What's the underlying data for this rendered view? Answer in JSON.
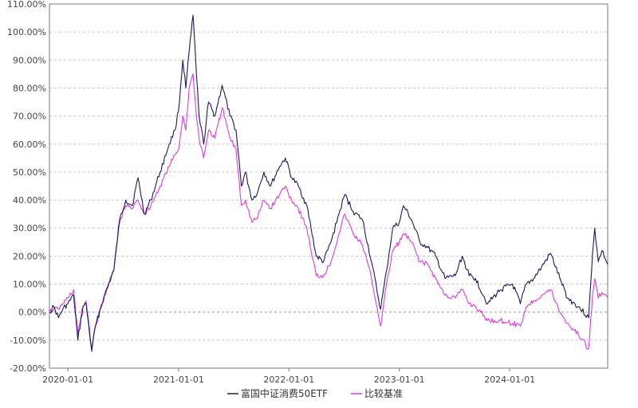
{
  "chart_data": {
    "type": "line",
    "title": "",
    "xlabel": "",
    "ylabel": "",
    "x_ticks": [
      "2020-01-01",
      "2021-01-01",
      "2022-01-01",
      "2023-01-01",
      "2024-01-01"
    ],
    "y_ticks": [
      "110.00%",
      "100.00%",
      "90.00%",
      "80.00%",
      "70.00%",
      "60.00%",
      "50.00%",
      "40.00%",
      "30.00%",
      "20.00%",
      "10.00%",
      "0.00%",
      "-10.00%",
      "-20.00%"
    ],
    "ylim": [
      -20,
      110
    ],
    "xlim": [
      "2019-11-01",
      "2024-11-20"
    ],
    "grid": true,
    "legend_position": "bottom",
    "series": [
      {
        "name": "富国中证消费50ETF",
        "color": "#1a1a5e",
        "points": [
          [
            "2019-11-01",
            0
          ],
          [
            "2019-11-15",
            2
          ],
          [
            "2019-12-01",
            -2
          ],
          [
            "2019-12-15",
            1
          ],
          [
            "2020-01-01",
            3
          ],
          [
            "2020-01-20",
            6
          ],
          [
            "2020-02-03",
            -10
          ],
          [
            "2020-02-20",
            2
          ],
          [
            "2020-03-01",
            3
          ],
          [
            "2020-03-20",
            -14
          ],
          [
            "2020-04-01",
            -5
          ],
          [
            "2020-05-01",
            6
          ],
          [
            "2020-06-01",
            15
          ],
          [
            "2020-06-20",
            33
          ],
          [
            "2020-07-10",
            40
          ],
          [
            "2020-08-01",
            38
          ],
          [
            "2020-08-20",
            48
          ],
          [
            "2020-09-10",
            35
          ],
          [
            "2020-10-01",
            40
          ],
          [
            "2020-11-01",
            50
          ],
          [
            "2020-12-01",
            60
          ],
          [
            "2020-12-20",
            65
          ],
          [
            "2021-01-01",
            72
          ],
          [
            "2021-01-15",
            90
          ],
          [
            "2021-01-25",
            80
          ],
          [
            "2021-02-05",
            93
          ],
          [
            "2021-02-18",
            106
          ],
          [
            "2021-03-01",
            85
          ],
          [
            "2021-03-10",
            70
          ],
          [
            "2021-03-25",
            60
          ],
          [
            "2021-04-10",
            75
          ],
          [
            "2021-05-01",
            70
          ],
          [
            "2021-05-25",
            81
          ],
          [
            "2021-06-20",
            70
          ],
          [
            "2021-07-10",
            65
          ],
          [
            "2021-07-28",
            45
          ],
          [
            "2021-08-10",
            50
          ],
          [
            "2021-09-01",
            40
          ],
          [
            "2021-09-20",
            43
          ],
          [
            "2021-10-10",
            50
          ],
          [
            "2021-11-01",
            45
          ],
          [
            "2021-12-01",
            52
          ],
          [
            "2021-12-20",
            55
          ],
          [
            "2022-01-10",
            48
          ],
          [
            "2022-02-01",
            45
          ],
          [
            "2022-03-01",
            38
          ],
          [
            "2022-03-15",
            30
          ],
          [
            "2022-04-01",
            20
          ],
          [
            "2022-04-25",
            18
          ],
          [
            "2022-05-20",
            25
          ],
          [
            "2022-06-15",
            35
          ],
          [
            "2022-07-05",
            42
          ],
          [
            "2022-08-01",
            36
          ],
          [
            "2022-09-01",
            33
          ],
          [
            "2022-10-01",
            18
          ],
          [
            "2022-10-31",
            1
          ],
          [
            "2022-11-20",
            15
          ],
          [
            "2022-12-10",
            30
          ],
          [
            "2023-01-01",
            32
          ],
          [
            "2023-01-15",
            38
          ],
          [
            "2023-02-10",
            33
          ],
          [
            "2023-03-10",
            25
          ],
          [
            "2023-04-05",
            23
          ],
          [
            "2023-05-01",
            20
          ],
          [
            "2023-06-01",
            12
          ],
          [
            "2023-07-05",
            13
          ],
          [
            "2023-07-28",
            20
          ],
          [
            "2023-08-20",
            13
          ],
          [
            "2023-09-10",
            12
          ],
          [
            "2023-10-20",
            3
          ],
          [
            "2023-12-01",
            8
          ],
          [
            "2024-01-10",
            10
          ],
          [
            "2024-02-05",
            3
          ],
          [
            "2024-02-25",
            10
          ],
          [
            "2024-03-20",
            12
          ],
          [
            "2024-04-15",
            16
          ],
          [
            "2024-05-15",
            21
          ],
          [
            "2024-06-15",
            12
          ],
          [
            "2024-07-10",
            5
          ],
          [
            "2024-08-15",
            2
          ],
          [
            "2024-09-18",
            -2
          ],
          [
            "2024-10-01",
            21
          ],
          [
            "2024-10-08",
            30
          ],
          [
            "2024-10-20",
            18
          ],
          [
            "2024-11-01",
            22
          ],
          [
            "2024-11-20",
            17
          ]
        ]
      },
      {
        "name": "比较基准",
        "color": "#e23ae2",
        "points": [
          [
            "2019-11-01",
            0
          ],
          [
            "2019-11-15",
            1
          ],
          [
            "2019-12-01",
            1
          ],
          [
            "2019-12-15",
            3
          ],
          [
            "2020-01-01",
            5
          ],
          [
            "2020-01-20",
            8
          ],
          [
            "2020-02-03",
            -8
          ],
          [
            "2020-02-20",
            2
          ],
          [
            "2020-03-01",
            4
          ],
          [
            "2020-03-20",
            -13
          ],
          [
            "2020-04-01",
            -5
          ],
          [
            "2020-05-01",
            6
          ],
          [
            "2020-06-01",
            15
          ],
          [
            "2020-06-20",
            32
          ],
          [
            "2020-07-10",
            38
          ],
          [
            "2020-08-01",
            37
          ],
          [
            "2020-08-20",
            40
          ],
          [
            "2020-09-10",
            35
          ],
          [
            "2020-10-01",
            38
          ],
          [
            "2020-11-01",
            45
          ],
          [
            "2020-12-01",
            52
          ],
          [
            "2020-12-20",
            56
          ],
          [
            "2021-01-01",
            58
          ],
          [
            "2021-01-15",
            70
          ],
          [
            "2021-01-25",
            65
          ],
          [
            "2021-02-05",
            80
          ],
          [
            "2021-02-18",
            85
          ],
          [
            "2021-03-01",
            70
          ],
          [
            "2021-03-10",
            62
          ],
          [
            "2021-03-25",
            55
          ],
          [
            "2021-04-10",
            65
          ],
          [
            "2021-05-01",
            62
          ],
          [
            "2021-05-25",
            73
          ],
          [
            "2021-06-20",
            62
          ],
          [
            "2021-07-10",
            58
          ],
          [
            "2021-07-28",
            38
          ],
          [
            "2021-08-10",
            40
          ],
          [
            "2021-09-01",
            32
          ],
          [
            "2021-09-20",
            34
          ],
          [
            "2021-10-10",
            40
          ],
          [
            "2021-11-01",
            37
          ],
          [
            "2021-12-01",
            42
          ],
          [
            "2021-12-20",
            45
          ],
          [
            "2022-01-10",
            40
          ],
          [
            "2022-02-01",
            37
          ],
          [
            "2022-03-01",
            30
          ],
          [
            "2022-03-15",
            22
          ],
          [
            "2022-04-01",
            13
          ],
          [
            "2022-04-25",
            13
          ],
          [
            "2022-05-20",
            18
          ],
          [
            "2022-06-15",
            28
          ],
          [
            "2022-07-05",
            35
          ],
          [
            "2022-08-01",
            28
          ],
          [
            "2022-09-01",
            24
          ],
          [
            "2022-10-01",
            12
          ],
          [
            "2022-10-31",
            -5
          ],
          [
            "2022-11-20",
            10
          ],
          [
            "2022-12-10",
            22
          ],
          [
            "2023-01-01",
            25
          ],
          [
            "2023-01-15",
            28
          ],
          [
            "2023-02-10",
            25
          ],
          [
            "2023-03-10",
            18
          ],
          [
            "2023-04-05",
            17
          ],
          [
            "2023-05-01",
            12
          ],
          [
            "2023-06-01",
            6
          ],
          [
            "2023-07-05",
            5
          ],
          [
            "2023-07-28",
            8
          ],
          [
            "2023-08-20",
            3
          ],
          [
            "2023-09-10",
            2
          ],
          [
            "2023-10-20",
            -3
          ],
          [
            "2023-12-01",
            -3
          ],
          [
            "2024-01-10",
            -4
          ],
          [
            "2024-02-05",
            -5
          ],
          [
            "2024-02-25",
            2
          ],
          [
            "2024-03-20",
            4
          ],
          [
            "2024-04-15",
            6
          ],
          [
            "2024-05-15",
            8
          ],
          [
            "2024-06-15",
            0
          ],
          [
            "2024-07-10",
            -4
          ],
          [
            "2024-08-15",
            -8
          ],
          [
            "2024-09-18",
            -13
          ],
          [
            "2024-10-01",
            6
          ],
          [
            "2024-10-08",
            12
          ],
          [
            "2024-10-20",
            5
          ],
          [
            "2024-11-01",
            7
          ],
          [
            "2024-11-20",
            5
          ]
        ]
      }
    ]
  }
}
